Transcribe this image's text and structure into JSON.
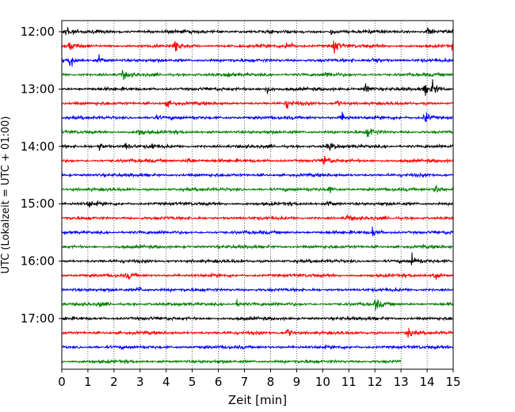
{
  "chart_data": {
    "type": "line",
    "title": "",
    "xlabel": "Zeit  [min]",
    "ylabel": "UTC (Lokalzeit = UTC + 01:00)",
    "xlim": [
      0,
      15
    ],
    "x_ticks": [
      "0",
      "1",
      "2",
      "3",
      "4",
      "5",
      "6",
      "7",
      "8",
      "9",
      "10",
      "11",
      "12",
      "13",
      "14",
      "15"
    ],
    "y_ticks": [
      "12:00",
      "13:00",
      "14:00",
      "15:00",
      "16:00",
      "17:00"
    ],
    "grid": "vertical dotted",
    "row_interval_min": 15,
    "trace_colors": [
      "#000000",
      "#ff0000",
      "#0000ff",
      "#008000"
    ],
    "rows": [
      {
        "time": "12:00",
        "color": "#000000",
        "end_min": 15,
        "events": [
          {
            "t": 0.15,
            "amp": 9
          },
          {
            "t": 14.0,
            "amp": 9
          },
          {
            "t": 10.3,
            "amp": 5
          }
        ]
      },
      {
        "time": "12:15",
        "color": "#ff0000",
        "end_min": 15,
        "events": [
          {
            "t": 0.3,
            "amp": 8
          },
          {
            "t": 4.3,
            "amp": 12
          },
          {
            "t": 8.6,
            "amp": 9
          },
          {
            "t": 10.4,
            "amp": 13
          },
          {
            "t": 15.0,
            "amp": 9
          }
        ]
      },
      {
        "time": "12:30",
        "color": "#0000ff",
        "end_min": 15,
        "events": [
          {
            "t": 0.3,
            "amp": 12
          },
          {
            "t": 1.4,
            "amp": 7
          },
          {
            "t": 11.9,
            "amp": 7
          }
        ]
      },
      {
        "time": "12:45",
        "color": "#008000",
        "end_min": 15,
        "events": [
          {
            "t": 2.3,
            "amp": 8
          },
          {
            "t": 6.3,
            "amp": 5
          },
          {
            "t": 10.1,
            "amp": 5
          }
        ]
      },
      {
        "time": "13:00",
        "color": "#000000",
        "end_min": 15,
        "events": [
          {
            "t": 7.8,
            "amp": 7
          },
          {
            "t": 11.6,
            "amp": 9
          },
          {
            "t": 13.9,
            "amp": 10
          },
          {
            "t": 14.2,
            "amp": 9
          }
        ]
      },
      {
        "time": "13:15",
        "color": "#ff0000",
        "end_min": 15,
        "events": [
          {
            "t": 4.0,
            "amp": 6
          },
          {
            "t": 8.6,
            "amp": 8
          },
          {
            "t": 10.5,
            "amp": 6
          }
        ]
      },
      {
        "time": "13:30",
        "color": "#0000ff",
        "end_min": 15,
        "events": [
          {
            "t": 3.5,
            "amp": 5
          },
          {
            "t": 10.7,
            "amp": 10
          },
          {
            "t": 13.9,
            "amp": 11
          }
        ]
      },
      {
        "time": "13:45",
        "color": "#008000",
        "end_min": 15,
        "events": [
          {
            "t": 2.9,
            "amp": 8
          },
          {
            "t": 11.7,
            "amp": 10
          }
        ]
      },
      {
        "time": "14:00",
        "color": "#000000",
        "end_min": 15,
        "events": [
          {
            "t": 1.4,
            "amp": 7
          },
          {
            "t": 2.4,
            "amp": 5
          },
          {
            "t": 3.4,
            "amp": 5
          },
          {
            "t": 10.2,
            "amp": 9
          }
        ]
      },
      {
        "time": "14:15",
        "color": "#ff0000",
        "end_min": 15,
        "events": [
          {
            "t": 4.8,
            "amp": 7
          },
          {
            "t": 10.0,
            "amp": 10
          }
        ]
      },
      {
        "time": "14:30",
        "color": "#0000ff",
        "end_min": 15,
        "events": []
      },
      {
        "time": "14:45",
        "color": "#008000",
        "end_min": 15,
        "events": [
          {
            "t": 10.2,
            "amp": 6
          },
          {
            "t": 14.3,
            "amp": 10
          }
        ]
      },
      {
        "time": "15:00",
        "color": "#000000",
        "end_min": 15,
        "events": [
          {
            "t": 1.0,
            "amp": 6
          },
          {
            "t": 10.2,
            "amp": 6
          }
        ]
      },
      {
        "time": "15:15",
        "color": "#ff0000",
        "end_min": 15,
        "events": [
          {
            "t": 10.9,
            "amp": 6
          }
        ]
      },
      {
        "time": "15:30",
        "color": "#0000ff",
        "end_min": 15,
        "events": [
          {
            "t": 11.9,
            "amp": 8
          }
        ]
      },
      {
        "time": "15:45",
        "color": "#008000",
        "end_min": 15,
        "events": []
      },
      {
        "time": "16:00",
        "color": "#000000",
        "end_min": 15,
        "events": [
          {
            "t": 13.4,
            "amp": 12
          }
        ]
      },
      {
        "time": "16:15",
        "color": "#ff0000",
        "end_min": 15,
        "events": [
          {
            "t": 2.5,
            "amp": 7
          },
          {
            "t": 14.2,
            "amp": 8
          }
        ]
      },
      {
        "time": "16:30",
        "color": "#0000ff",
        "end_min": 15,
        "events": [
          {
            "t": 2.9,
            "amp": 5
          }
        ]
      },
      {
        "time": "16:45",
        "color": "#008000",
        "end_min": 15,
        "events": [
          {
            "t": 1.4,
            "amp": 5
          },
          {
            "t": 6.7,
            "amp": 5
          },
          {
            "t": 12.0,
            "amp": 10
          }
        ]
      },
      {
        "time": "17:00",
        "color": "#000000",
        "end_min": 15,
        "events": []
      },
      {
        "time": "17:15",
        "color": "#ff0000",
        "end_min": 15,
        "events": [
          {
            "t": 8.6,
            "amp": 9
          },
          {
            "t": 13.2,
            "amp": 10
          }
        ]
      },
      {
        "time": "17:30",
        "color": "#0000ff",
        "end_min": 15,
        "events": []
      },
      {
        "time": "17:45",
        "color": "#008000",
        "end_min": 13.0,
        "events": []
      }
    ]
  }
}
